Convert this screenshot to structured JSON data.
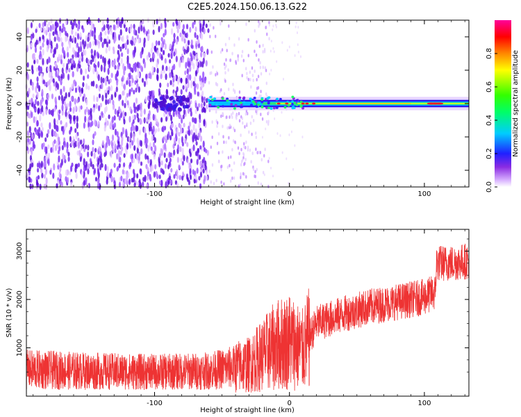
{
  "title": "C2E5.2024.150.06.13.G22",
  "chart_data": [
    {
      "type": "heatmap",
      "xlabel": "Height of straight line (km)",
      "ylabel": "Frequency (Hz)",
      "xlim": [
        -195,
        133
      ],
      "ylim": [
        -50,
        50
      ],
      "xticks": [
        -100,
        0,
        100
      ],
      "yticks": [
        -40,
        -20,
        0,
        20,
        40
      ],
      "colorbar": {
        "label": "Normalized spectral amplitude",
        "range": [
          0,
          1
        ],
        "ticks": [
          0.0,
          0.2,
          0.4,
          0.6,
          0.8
        ],
        "tick_labels": [
          "0.0",
          "0.2",
          "0.4",
          "0.6",
          "0.8"
        ],
        "colormap": "rainbow (white at 0, violet, blue, cyan, green, yellow, red, magenta at 1)"
      },
      "description_values": {
        "noise_region_x": [
          -195,
          -60
        ],
        "carrier_line_frequency": 0,
        "carrier_x_range": [
          -60,
          133
        ]
      }
    },
    {
      "type": "line",
      "xlabel": "Height of straight line (km)",
      "ylabel": "SNR (10 * v/v)",
      "xlim": [
        -195,
        133
      ],
      "ylim": [
        0,
        3450
      ],
      "xticks": [
        -100,
        0,
        100
      ],
      "yticks": [
        1000,
        2000,
        3000
      ],
      "series_color": "#ee3333",
      "trend": {
        "x": [
          -195,
          -150,
          -100,
          -60,
          -30,
          -10,
          0,
          10,
          20,
          40,
          60,
          80,
          100,
          108,
          109,
          120,
          133
        ],
        "y": [
          550,
          520,
          500,
          520,
          650,
          1050,
          1150,
          950,
          1500,
          1700,
          1850,
          1950,
          2050,
          2150,
          2750,
          2750,
          2800
        ]
      }
    }
  ]
}
